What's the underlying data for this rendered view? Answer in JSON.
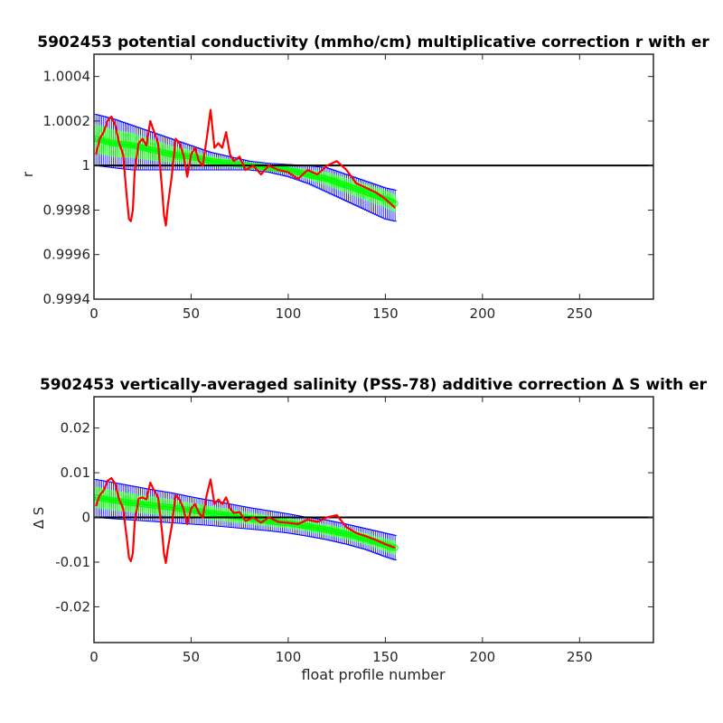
{
  "chart_data": [
    {
      "type": "line",
      "title": "5902453 potential conductivity (mmho/cm) multiplicative correction r with er",
      "xlabel": "",
      "ylabel": "r",
      "xlim": [
        0,
        288
      ],
      "ylim": [
        0.9994,
        1.0005
      ],
      "xticks": [
        "0",
        "50",
        "100",
        "150",
        "200",
        "250"
      ],
      "yticks": [
        "0.9994",
        "0.9996",
        "0.9998",
        "1",
        "1.0002",
        "1.0004"
      ],
      "reference_line": 1,
      "grid": false,
      "series": [
        {
          "kind": "errorbar-band",
          "color": "#0000ff",
          "x": [
            1,
            10,
            20,
            30,
            40,
            50,
            60,
            70,
            80,
            90,
            100,
            110,
            120,
            130,
            140,
            150,
            155
          ],
          "upper": [
            1.00023,
            1.00021,
            1.00018,
            1.00015,
            1.00012,
            1.00009,
            1.00006,
            1.00004,
            1.00002,
            1.00001,
            1.000005,
            1.0,
            0.99999,
            0.99996,
            0.99993,
            0.9999,
            0.99989
          ],
          "lower": [
            1.0,
            0.99999,
            0.99998,
            0.99998,
            0.99998,
            0.99998,
            0.99998,
            0.99998,
            0.99998,
            0.99997,
            0.99995,
            0.99992,
            0.99988,
            0.99984,
            0.9998,
            0.99976,
            0.99975
          ]
        },
        {
          "kind": "fit-band",
          "color": "#00ff00",
          "x": [
            1,
            10,
            20,
            30,
            40,
            50,
            60,
            70,
            80,
            90,
            100,
            110,
            120,
            130,
            140,
            150,
            155
          ],
          "y": [
            1.00012,
            1.0001,
            1.00009,
            1.00007,
            1.00005,
            1.00004,
            1.00002,
            1.00001,
            1.0,
            0.99999,
            0.99998,
            0.99996,
            0.99994,
            0.99991,
            0.99988,
            0.99985,
            0.99983
          ]
        },
        {
          "kind": "line",
          "color": "#ff0000",
          "x": [
            1,
            3,
            5,
            7,
            9,
            11,
            13,
            15,
            17,
            18,
            19,
            20,
            21,
            23,
            25,
            27,
            29,
            31,
            33,
            35,
            36,
            37,
            38,
            40,
            42,
            44,
            46,
            48,
            50,
            52,
            54,
            56,
            58,
            60,
            62,
            64,
            66,
            68,
            70,
            72,
            75,
            78,
            82,
            86,
            90,
            95,
            100,
            105,
            110,
            115,
            120,
            125,
            130,
            135,
            140,
            145,
            150,
            155
          ],
          "y": [
            1.00005,
            1.00012,
            1.00015,
            1.0002,
            1.00022,
            1.00018,
            1.0001,
            1.00005,
            0.99985,
            0.99976,
            0.99975,
            0.9998,
            0.99998,
            1.0001,
            1.00012,
            1.00009,
            1.0002,
            1.00015,
            1.0001,
            0.9999,
            0.99978,
            0.99973,
            0.99982,
            0.99995,
            1.00012,
            1.0001,
            1.00005,
            0.99995,
            1.00005,
            1.00008,
            1.00002,
            1.0,
            1.00012,
            1.00025,
            1.00008,
            1.0001,
            1.00008,
            1.00015,
            1.00005,
            1.00002,
            1.00004,
            0.99998,
            1.0,
            0.99996,
            1.0,
            0.99998,
            0.99997,
            0.99994,
            0.99998,
            0.99996,
            1.0,
            1.00002,
            0.99998,
            0.99992,
            0.9999,
            0.99988,
            0.99985,
            0.99981
          ]
        }
      ]
    },
    {
      "type": "line",
      "title": "5902453 vertically-averaged salinity (PSS-78) additive correction Δ S with er",
      "xlabel": "float profile number",
      "ylabel": "Δ S",
      "xlim": [
        0,
        288
      ],
      "ylim": [
        -0.028,
        0.027
      ],
      "xticks": [
        "0",
        "50",
        "100",
        "150",
        "200",
        "250"
      ],
      "yticks": [
        "-0.02",
        "-0.01",
        "0",
        "0.01",
        "0.02"
      ],
      "reference_line": 0,
      "grid": false,
      "series": [
        {
          "kind": "errorbar-band",
          "color": "#0000ff",
          "x": [
            1,
            10,
            20,
            30,
            40,
            50,
            60,
            70,
            80,
            90,
            100,
            110,
            120,
            130,
            140,
            150,
            155
          ],
          "upper": [
            0.0085,
            0.0078,
            0.007,
            0.0062,
            0.0055,
            0.0046,
            0.0038,
            0.003,
            0.0022,
            0.0015,
            0.0008,
            0.0,
            -0.0006,
            -0.0015,
            -0.0025,
            -0.0035,
            -0.004
          ],
          "lower": [
            0.0,
            -0.0003,
            -0.0006,
            -0.0009,
            -0.0012,
            -0.0015,
            -0.0018,
            -0.0022,
            -0.0026,
            -0.003,
            -0.0035,
            -0.0042,
            -0.005,
            -0.006,
            -0.0072,
            -0.0088,
            -0.0095
          ]
        },
        {
          "kind": "fit-band",
          "color": "#00ff00",
          "x": [
            1,
            10,
            20,
            30,
            40,
            50,
            60,
            70,
            80,
            90,
            100,
            110,
            120,
            130,
            140,
            150,
            155
          ],
          "y": [
            0.0045,
            0.0038,
            0.0032,
            0.0027,
            0.0022,
            0.0016,
            0.001,
            0.0004,
            -0.0002,
            -0.0008,
            -0.0013,
            -0.002,
            -0.0028,
            -0.0037,
            -0.0048,
            -0.0062,
            -0.0068
          ]
        },
        {
          "kind": "line",
          "color": "#ff0000",
          "x": [
            1,
            3,
            5,
            7,
            9,
            11,
            13,
            15,
            17,
            18,
            19,
            20,
            21,
            23,
            25,
            27,
            29,
            31,
            33,
            35,
            36,
            37,
            38,
            40,
            42,
            44,
            46,
            48,
            50,
            52,
            54,
            56,
            58,
            60,
            62,
            64,
            66,
            68,
            70,
            72,
            75,
            78,
            82,
            86,
            90,
            95,
            100,
            105,
            110,
            115,
            120,
            125,
            130,
            135,
            140,
            145,
            150,
            155
          ],
          "y": [
            0.0025,
            0.005,
            0.006,
            0.0082,
            0.0088,
            0.0075,
            0.004,
            0.002,
            -0.005,
            -0.009,
            -0.0098,
            -0.008,
            -0.001,
            0.0042,
            0.0045,
            0.004,
            0.0078,
            0.006,
            0.0045,
            -0.003,
            -0.008,
            -0.0102,
            -0.007,
            -0.002,
            0.005,
            0.004,
            0.002,
            -0.0015,
            0.002,
            0.003,
            0.001,
            0.0,
            0.005,
            0.0085,
            0.003,
            0.004,
            0.003,
            0.0045,
            0.002,
            0.001,
            0.0012,
            -0.0008,
            0.0,
            -0.0012,
            0.0,
            -0.001,
            -0.0012,
            -0.0015,
            -0.0005,
            -0.001,
            0.0,
            0.0005,
            -0.0022,
            -0.0035,
            -0.0042,
            -0.005,
            -0.006,
            -0.0068
          ]
        }
      ]
    }
  ]
}
